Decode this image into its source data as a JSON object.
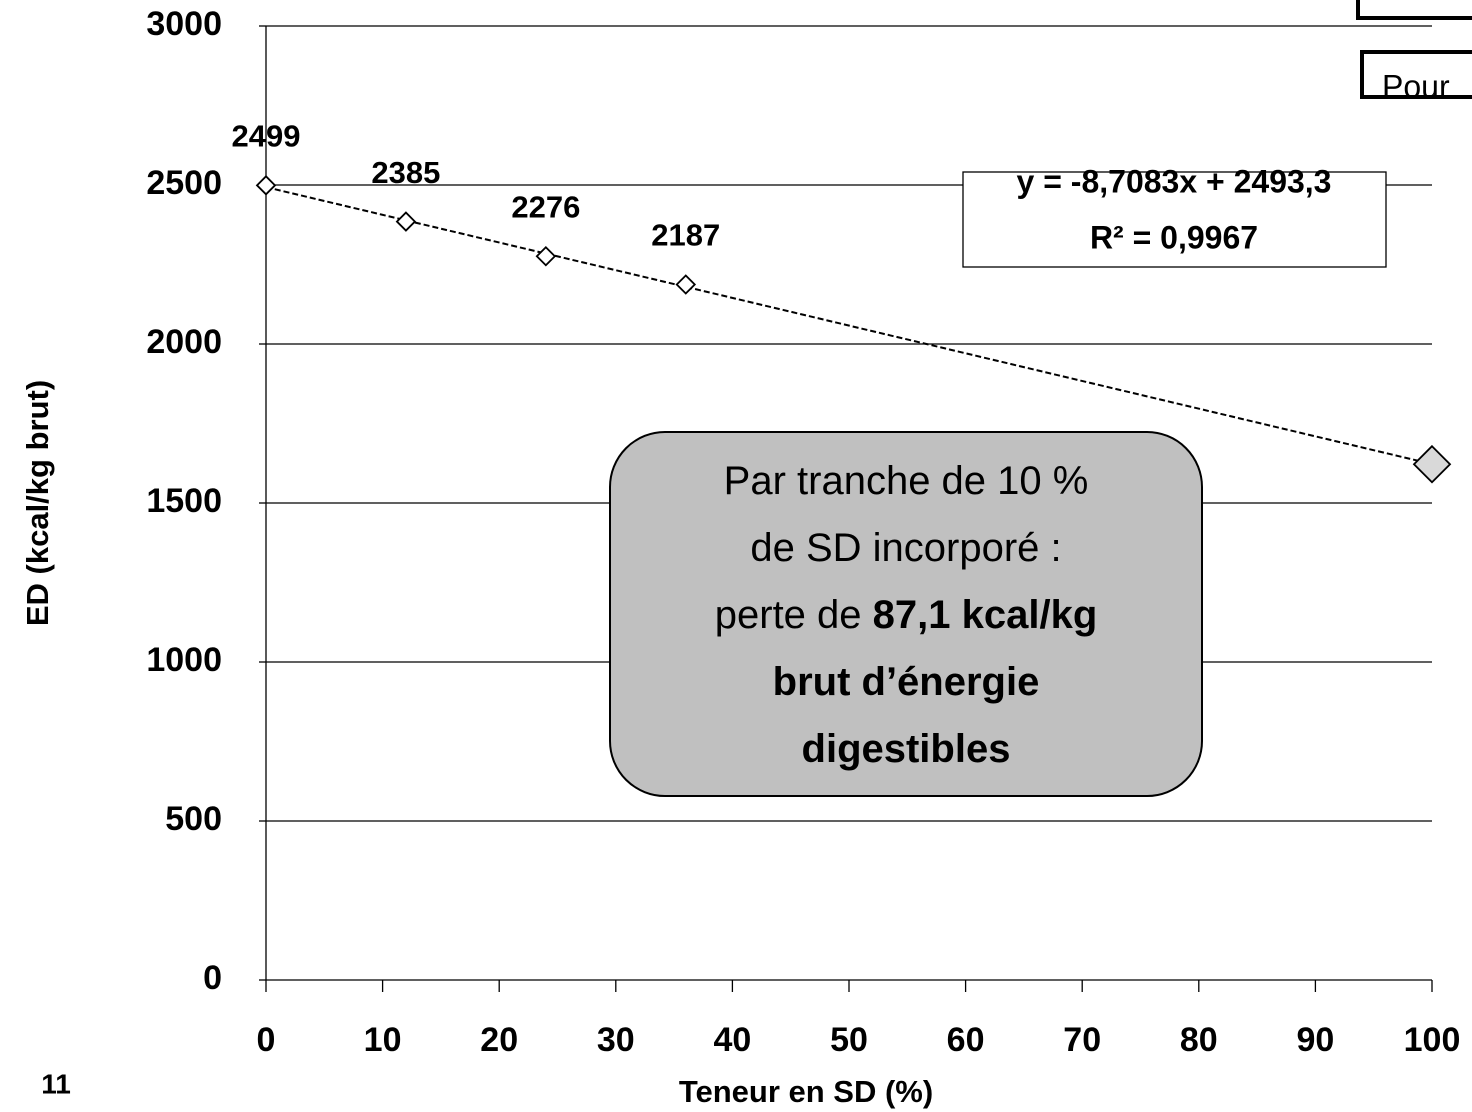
{
  "chart_data": {
    "type": "scatter",
    "page_number": "11",
    "x_label": "Teneur en SD (%)",
    "y_label": "ED (kcal/kg brut)",
    "xlim": [
      0,
      100
    ],
    "xticks": [
      0,
      10,
      20,
      30,
      40,
      50,
      60,
      70,
      80,
      90,
      100
    ],
    "ylim": [
      0,
      3000
    ],
    "yticks": [
      0,
      500,
      1000,
      1500,
      2000,
      2500,
      3000
    ],
    "grid": true,
    "series": [
      {
        "color": "#ffffff",
        "data_labels": true,
        "x": [
          0,
          12,
          24,
          36
        ],
        "values": [
          2499,
          2385,
          2276,
          2187
        ]
      },
      {
        "color": "#d9d9d9",
        "x": [
          100
        ],
        "values": [
          1622
        ]
      }
    ],
    "trendline": {
      "slope": -8.7083,
      "intercept": 2493.3,
      "equation": "y = -8,7083x + 2493,3",
      "r2": "R² = 0,9967"
    },
    "callout": {
      "lines": [
        [
          {
            "text": "Par tranche de 10 %"
          }
        ],
        [
          {
            "text": "de SD incorporé :"
          }
        ],
        [
          {
            "text": "perte de "
          },
          {
            "text": "87,1 kcal/kg",
            "bold": true
          }
        ],
        [
          {
            "text": "brut d’énergie",
            "bold": true
          }
        ],
        [
          {
            "text": "digestibles",
            "bold": true
          }
        ]
      ]
    },
    "side_note": "Pour"
  }
}
